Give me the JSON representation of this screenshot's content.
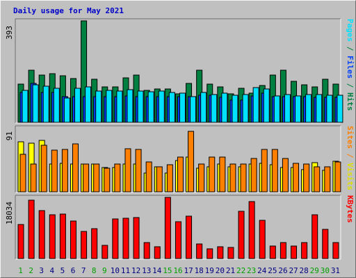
{
  "chart_data": {
    "type": "bar",
    "title": "Daily usage for May 2021",
    "categories": [
      "1",
      "2",
      "3",
      "4",
      "5",
      "6",
      "7",
      "8",
      "9",
      "10",
      "11",
      "12",
      "13",
      "14",
      "15",
      "16",
      "17",
      "18",
      "19",
      "20",
      "21",
      "22",
      "23",
      "24",
      "25",
      "26",
      "27",
      "28",
      "29",
      "30",
      "31"
    ],
    "weekend_days": [
      "1",
      "2",
      "8",
      "9",
      "15",
      "16",
      "22",
      "23",
      "29",
      "30"
    ],
    "panels": [
      {
        "id": "top",
        "scale_label": "393",
        "ylim": [
          0,
          393
        ],
        "series": [
          {
            "name": "Hits",
            "color": "#008040",
            "values": [
              148,
              202,
              183,
              189,
              180,
              169,
              393,
              166,
              136,
              137,
              171,
              183,
              123,
              130,
              130,
              110,
              151,
              201,
              147,
              137,
              110,
              132,
              112,
              144,
              183,
              202,
              159,
              146,
              137,
              168,
              149
            ]
          },
          {
            "name": "Files",
            "color": "#0040ff",
            "values": [
              117,
              150,
              116,
              117,
              100,
              100,
              100,
              100,
              100,
              99,
              101,
              99,
              100,
              100,
              100,
              99,
              100,
              104,
              104,
              96,
              85,
              85,
              103,
              113,
              100,
              100,
              99,
              99,
              97,
              98,
              97
            ]
          },
          {
            "name": "Pages",
            "color": "#00e0ff",
            "values": [
              125,
              145,
              140,
              132,
              93,
              133,
              138,
              122,
              123,
              121,
              126,
              120,
              119,
              120,
              117,
              112,
              100,
              117,
              109,
              112,
              106,
              107,
              135,
              128,
              101,
              107,
              103,
              109,
              107,
              105,
              106
            ]
          }
        ]
      },
      {
        "id": "middle",
        "scale_label": "91",
        "ylim": [
          0,
          91
        ],
        "series": [
          {
            "name": "Visits",
            "color": "#ffff00",
            "values": [
              71,
              69,
              73,
              40,
              41,
              40,
              40,
              40,
              35,
              35,
              40,
              40,
              27,
              36,
              27,
              45,
              49,
              34,
              36,
              40,
              36,
              36,
              40,
              41,
              39,
              35,
              35,
              32,
              42,
              31,
              44
            ]
          },
          {
            "name": "Sites",
            "color": "#ff8000",
            "values": [
              53,
              40,
              66,
              59,
              60,
              68,
              40,
              40,
              34,
              40,
              61,
              60,
              43,
              36,
              39,
              49,
              86,
              40,
              49,
              49,
              40,
              40,
              47,
              60,
              60,
              47,
              41,
              40,
              36,
              36,
              43
            ]
          }
        ]
      },
      {
        "id": "bottom",
        "scale_label": "18034",
        "ylim": [
          0,
          18034
        ],
        "series": [
          {
            "name": "KBytes",
            "color": "#ff0000",
            "values": [
              10130,
              17200,
              14200,
              13000,
              13200,
              11000,
              8000,
              8900,
              3800,
              11600,
              11800,
              12000,
              4800,
              3400,
              18034,
              10900,
              12600,
              4300,
              2900,
              3400,
              3200,
              14000,
              16800,
              11200,
              3700,
              4800,
              3700,
              4800,
              13000,
              8700,
              4800
            ]
          }
        ]
      }
    ],
    "right_labels": {
      "top": [
        {
          "text": "Pages",
          "color": "#00e0ff"
        },
        {
          "text": " / ",
          "color": "#008040"
        },
        {
          "text": "Files",
          "color": "#0040ff"
        },
        {
          "text": " / ",
          "color": "#008040"
        },
        {
          "text": "Hits",
          "color": "#008040"
        }
      ],
      "middle": [
        {
          "text": "Sites",
          "color": "#ff8000"
        },
        {
          "text": " / ",
          "color": "#ff8000"
        },
        {
          "text": "Visits",
          "color": "#e0e000"
        }
      ],
      "bottom": [
        {
          "text": "KBytes",
          "color": "#ff0000"
        }
      ]
    },
    "weekday_label_color": "#000080",
    "weekend_label_color": "#00a000",
    "bar_border_color": "#000000"
  }
}
